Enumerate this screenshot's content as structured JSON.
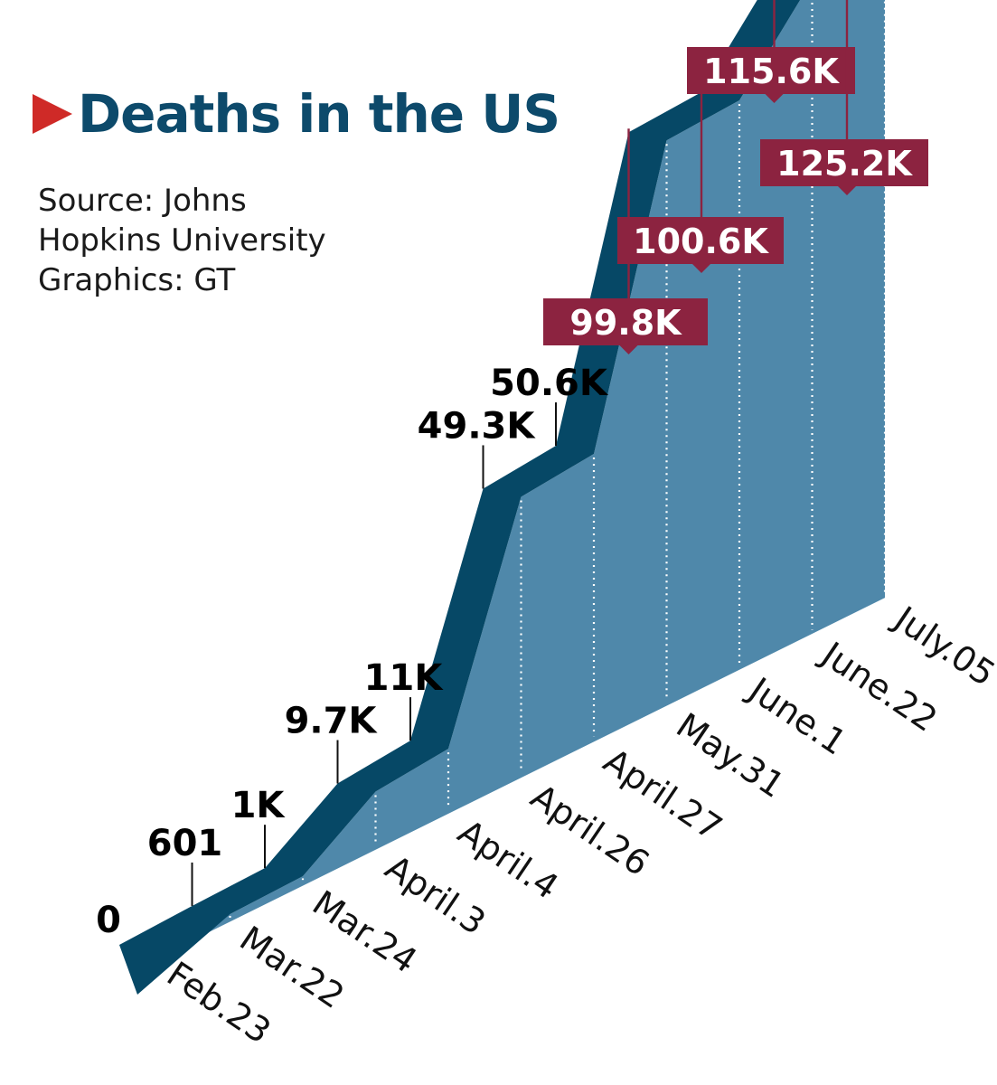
{
  "header": {
    "title": "Deaths in the US",
    "source_lines": [
      "Source: Johns",
      "Hopkins University",
      "Graphics: GT"
    ]
  },
  "colors": {
    "ribbon": "#064866",
    "area": "#4f88aa",
    "callout_box": "#8c2340",
    "title": "#0d4a6b",
    "arrow": "#cf2a27"
  },
  "chart_data": {
    "type": "area",
    "title": "Deaths in the US",
    "x": [
      "Feb.23",
      "Mar.22",
      "Mar.24",
      "April.3",
      "April.4",
      "April.26",
      "April.27",
      "May.31",
      "June.1",
      "June.22",
      "July.05"
    ],
    "series": [
      {
        "values": [
          0,
          601,
          1000,
          9700,
          11000,
          49300,
          50600,
          99800,
          100600,
          115600,
          125200
        ],
        "labels": [
          "0",
          "601",
          "1K",
          "9.7K",
          "11K",
          "49.3K",
          "50.6K",
          "99.8K",
          "100.6K",
          "115.6K",
          "125.2K"
        ]
      }
    ],
    "boxed_labels": [
      "99.8K",
      "100.6K",
      "115.6K",
      "125.2K"
    ],
    "grid": false,
    "legend": "none"
  }
}
